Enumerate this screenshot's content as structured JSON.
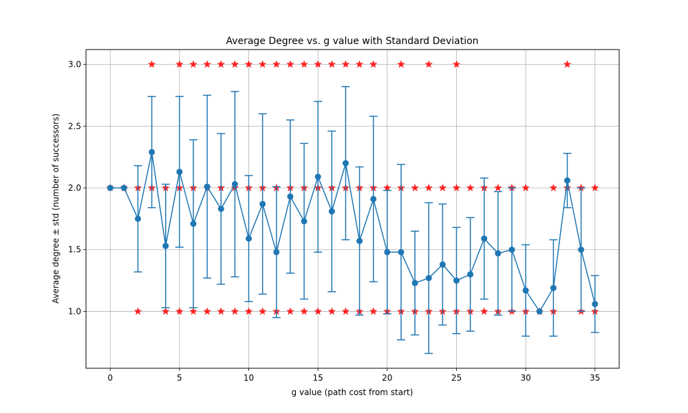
{
  "chart_data": {
    "type": "scatter",
    "title": "Average Degree vs. g value with Standard Deviation",
    "xlabel": "g value (path cost from start)",
    "ylabel": "Average degree ± std (number of successors)",
    "xlim": [
      -1.75,
      36.75
    ],
    "ylim": [
      0.54,
      3.12
    ],
    "x_ticks": [
      0,
      5,
      10,
      15,
      20,
      25,
      30,
      35
    ],
    "y_ticks": [
      1.0,
      1.5,
      2.0,
      2.5,
      3.0
    ],
    "x_tick_labels": [
      "0",
      "5",
      "10",
      "15",
      "20",
      "25",
      "30",
      "35"
    ],
    "y_tick_labels": [
      "1.0",
      "1.5",
      "2.0",
      "2.5",
      "3.0"
    ],
    "grid": true,
    "series": [
      {
        "type": "errorbar-line",
        "color": "#1f77b4",
        "points": [
          {
            "x": 0,
            "y": 2.0,
            "std": 0
          },
          {
            "x": 1,
            "y": 2.0,
            "std": 0
          },
          {
            "x": 2,
            "y": 1.75,
            "std": 0.43
          },
          {
            "x": 3,
            "y": 2.29,
            "std": 0.45
          },
          {
            "x": 4,
            "y": 1.53,
            "std": 0.5
          },
          {
            "x": 5,
            "y": 2.13,
            "std": 0.61
          },
          {
            "x": 6,
            "y": 1.71,
            "std": 0.68
          },
          {
            "x": 7,
            "y": 2.01,
            "std": 0.74
          },
          {
            "x": 8,
            "y": 1.83,
            "std": 0.61
          },
          {
            "x": 9,
            "y": 2.03,
            "std": 0.75
          },
          {
            "x": 10,
            "y": 1.59,
            "std": 0.51
          },
          {
            "x": 11,
            "y": 1.87,
            "std": 0.73
          },
          {
            "x": 12,
            "y": 1.48,
            "std": 0.53
          },
          {
            "x": 13,
            "y": 1.93,
            "std": 0.62
          },
          {
            "x": 14,
            "y": 1.73,
            "std": 0.63
          },
          {
            "x": 15,
            "y": 2.09,
            "std": 0.61
          },
          {
            "x": 16,
            "y": 1.81,
            "std": 0.65
          },
          {
            "x": 17,
            "y": 2.2,
            "std": 0.62
          },
          {
            "x": 18,
            "y": 1.57,
            "std": 0.6
          },
          {
            "x": 19,
            "y": 1.91,
            "std": 0.67
          },
          {
            "x": 20,
            "y": 1.48,
            "std": 0.5
          },
          {
            "x": 21,
            "y": 1.48,
            "std": 0.71
          },
          {
            "x": 22,
            "y": 1.23,
            "std": 0.42
          },
          {
            "x": 23,
            "y": 1.27,
            "std": 0.61
          },
          {
            "x": 24,
            "y": 1.38,
            "std": 0.49
          },
          {
            "x": 25,
            "y": 1.25,
            "std": 0.43
          },
          {
            "x": 26,
            "y": 1.3,
            "std": 0.46
          },
          {
            "x": 27,
            "y": 1.59,
            "std": 0.49
          },
          {
            "x": 28,
            "y": 1.47,
            "std": 0.5
          },
          {
            "x": 29,
            "y": 1.5,
            "std": 0.5
          },
          {
            "x": 30,
            "y": 1.17,
            "std": 0.37
          },
          {
            "x": 31,
            "y": 1.0,
            "std": 0
          },
          {
            "x": 32,
            "y": 1.19,
            "std": 0.39
          },
          {
            "x": 33,
            "y": 2.06,
            "std": 0.22
          },
          {
            "x": 34,
            "y": 1.5,
            "std": 0.5
          },
          {
            "x": 35,
            "y": 1.06,
            "std": 0.23
          }
        ]
      },
      {
        "type": "star-scatter",
        "color": "#ff0000",
        "points_y3": [
          3,
          5,
          6,
          7,
          8,
          9,
          10,
          11,
          12,
          13,
          14,
          15,
          16,
          17,
          18,
          19,
          21,
          23,
          25,
          33
        ],
        "points_y2": [
          0,
          1,
          2,
          3,
          4,
          5,
          6,
          7,
          8,
          9,
          10,
          11,
          12,
          13,
          14,
          15,
          16,
          17,
          18,
          19,
          20,
          21,
          22,
          23,
          24,
          25,
          26,
          27,
          28,
          29,
          30,
          32,
          33,
          34,
          35
        ],
        "points_y1": [
          2,
          4,
          5,
          6,
          7,
          8,
          9,
          10,
          11,
          12,
          13,
          14,
          15,
          16,
          17,
          18,
          19,
          20,
          21,
          22,
          23,
          24,
          25,
          26,
          27,
          28,
          29,
          30,
          31,
          32,
          34,
          35
        ]
      }
    ]
  }
}
